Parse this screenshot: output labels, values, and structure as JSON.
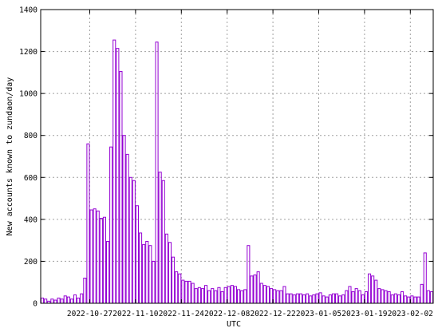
{
  "chart_data": {
    "type": "bar",
    "title": "",
    "xlabel": "UTC",
    "ylabel": "New accounts known to zundaon/day",
    "x_start": "2022-10-12",
    "values": [
      25,
      20,
      10,
      20,
      15,
      25,
      20,
      35,
      30,
      20,
      40,
      25,
      45,
      120,
      760,
      445,
      450,
      440,
      405,
      410,
      295,
      745,
      1255,
      1215,
      1105,
      800,
      710,
      600,
      585,
      465,
      335,
      280,
      295,
      275,
      200,
      1245,
      625,
      585,
      330,
      290,
      220,
      150,
      140,
      110,
      105,
      105,
      95,
      70,
      75,
      70,
      85,
      60,
      70,
      60,
      75,
      55,
      75,
      80,
      85,
      80,
      65,
      60,
      65,
      275,
      130,
      135,
      150,
      95,
      85,
      80,
      70,
      65,
      60,
      60,
      80,
      45,
      45,
      40,
      45,
      45,
      40,
      45,
      35,
      40,
      45,
      50,
      35,
      30,
      40,
      45,
      45,
      35,
      40,
      60,
      80,
      55,
      70,
      60,
      40,
      55,
      140,
      130,
      110,
      70,
      65,
      60,
      55,
      40,
      45,
      40,
      55,
      35,
      30,
      35,
      30,
      30,
      90,
      240,
      60,
      55
    ],
    "ylim": [
      0,
      1400
    ],
    "y_ticks": [
      0,
      200,
      400,
      600,
      800,
      1000,
      1200,
      1400
    ],
    "x_ticks": [
      "2022-10-27",
      "2022-11-10",
      "2022-11-24",
      "2022-12-08",
      "2022-12-22",
      "2023-01-05",
      "2023-01-19",
      "2023-02-02"
    ],
    "grid": true,
    "bar_color": "#9400d3",
    "frame_color": "#000000",
    "grid_color": "#a0a0a0"
  }
}
